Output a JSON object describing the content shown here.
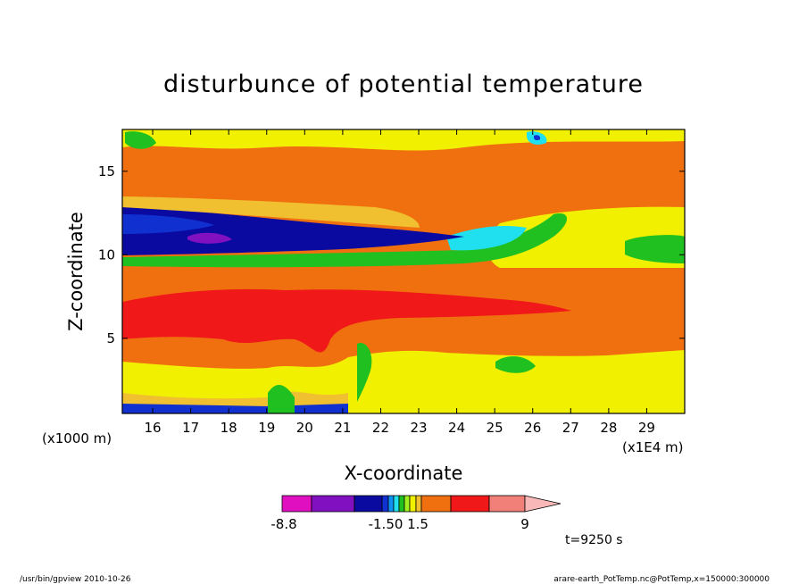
{
  "chart_data": {
    "type": "heatmap",
    "title": "disturbunce of potential temperature",
    "xlabel": "X-coordinate",
    "ylabel": "Z-coordinate",
    "x_unit": "(x1E4 m)",
    "y_unit": "(x1000 m)",
    "x_ticks": [
      "16",
      "17",
      "18",
      "19",
      "20",
      "21",
      "22",
      "23",
      "24",
      "25",
      "26",
      "27",
      "28",
      "29"
    ],
    "y_ticks": [
      "5",
      "10",
      "15"
    ],
    "xlim": [
      15.2,
      30.0
    ],
    "ylim": [
      0.5,
      17.5
    ],
    "colorbar": {
      "labels": [
        "-8.8",
        "-1.50",
        "1.5",
        "9"
      ],
      "colors": [
        "#e010c0",
        "#8010c0",
        "#0a0aa0",
        "#1030d0",
        "#1090f0",
        "#20e0f0",
        "#20c020",
        "#a0f020",
        "#f0f000",
        "#f0c030",
        "#f07010",
        "#f01818",
        "#f08078",
        "#f8b8b8"
      ]
    },
    "bands": [
      {
        "z0": 0.5,
        "z1": 1.5,
        "value": 3.0
      },
      {
        "z0": 1.5,
        "z1": 3.5,
        "value": 2.0
      },
      {
        "z0": 3.5,
        "z1": 6.0,
        "value": 4.5
      },
      {
        "z0": 6.0,
        "z1": 8.0,
        "value": 6.5
      },
      {
        "z0": 8.0,
        "z1": 9.5,
        "value": 4.5
      },
      {
        "z0": 9.5,
        "z1": 10.0,
        "value": 2.0
      },
      {
        "z0": 10.0,
        "z1": 12.5,
        "value": -5.0
      },
      {
        "z0": 12.5,
        "z1": 13.5,
        "value": 2.0
      },
      {
        "z0": 13.5,
        "z1": 17.0,
        "value": 4.5
      },
      {
        "z0": 17.0,
        "z1": 17.5,
        "value": 2.0
      }
    ]
  },
  "annotation_time": "t=9250 s",
  "footer_left": "/usr/bin/gpview   2010-10-26",
  "footer_right": "arare-earth_PotTemp.nc@PotTemp,x=150000:300000"
}
